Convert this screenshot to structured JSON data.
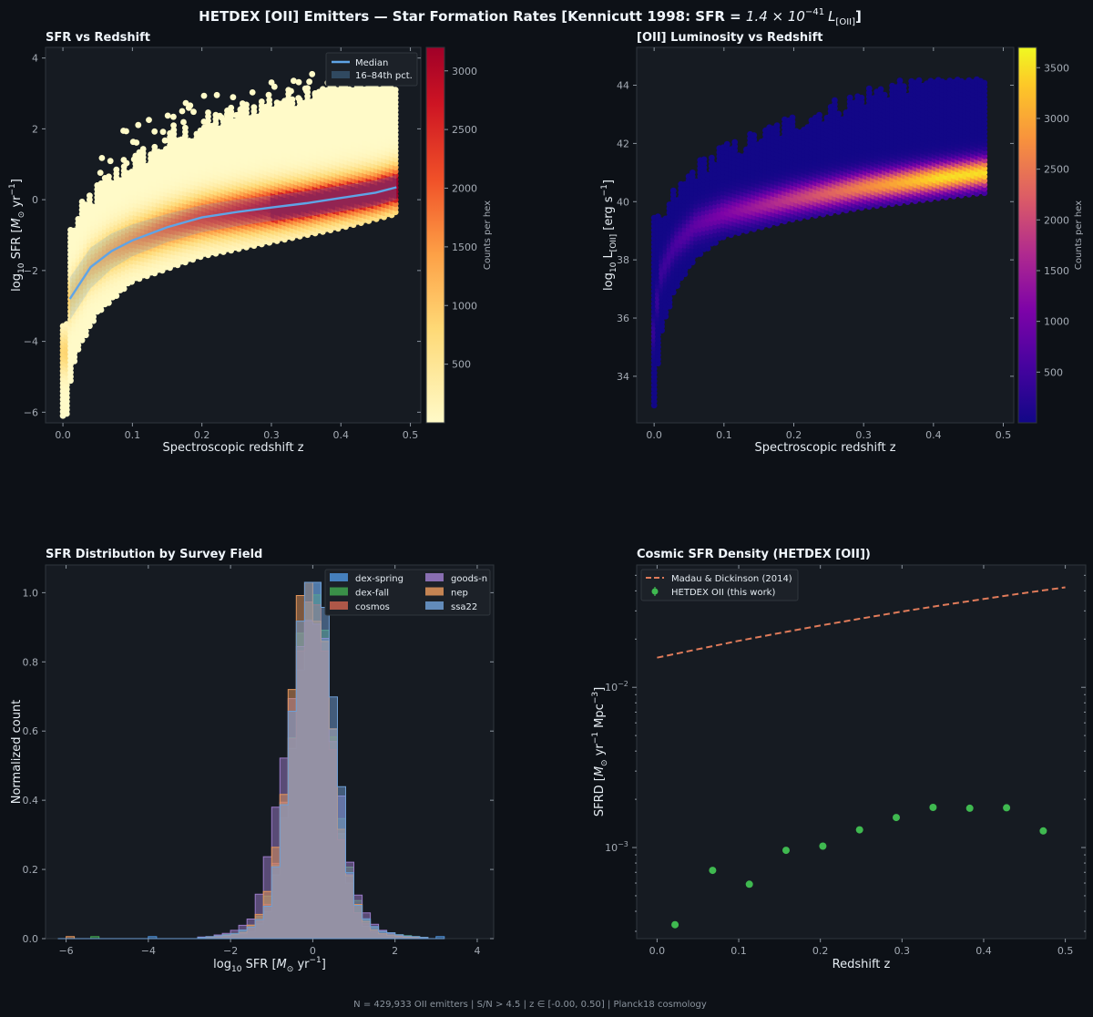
{
  "figure": {
    "title_prefix": "HETDEX [OII] Emitters — Star Formation Rates  [Kennicutt 1998: SFR = ",
    "title_formula_coef": "1.4 × 10",
    "title_formula_exp": "−41",
    "title_formula_L": "L",
    "title_formula_sub": "[OII]",
    "title_suffix": "]",
    "footer": "N = 429,933 OII emitters   |   S/N > 4.5   |   z ∈ [-0.00, 0.50]   |   Planck18 cosmology",
    "colors": {
      "background": "#0d1117",
      "panel": "#161b22",
      "median": "#5fa4e6",
      "madau": "#e07b5a",
      "hetdex": "#3fb950"
    }
  },
  "chart_data": [
    {
      "type": "heatmap",
      "title": "SFR vs Redshift",
      "xlabel": "Spectroscopic redshift  z",
      "ylabel_parts": [
        "log",
        "10",
        " SFR  [",
        "M",
        "⊙",
        " yr",
        "−1",
        "]"
      ],
      "xlim": [
        -0.025,
        0.515
      ],
      "ylim": [
        -6.3,
        4.3
      ],
      "xticks": [
        "0.0",
        "0.1",
        "0.2",
        "0.3",
        "0.4",
        "0.5"
      ],
      "yticks": [
        "−6",
        "−4",
        "−2",
        "0",
        "2",
        "4"
      ],
      "colorbar": {
        "label": "Counts per hex",
        "range": [
          0,
          3200
        ],
        "ticks": [
          "500",
          "1000",
          "1500",
          "2000",
          "2500",
          "3000"
        ],
        "colormap": "YlOrRd"
      },
      "legend": {
        "position": "top-right",
        "entries": [
          "Median",
          "16–84th pct."
        ]
      },
      "median": {
        "x": [
          0.01,
          0.04,
          0.07,
          0.1,
          0.15,
          0.2,
          0.25,
          0.3,
          0.35,
          0.4,
          0.45,
          0.48
        ],
        "y": [
          -2.8,
          -1.9,
          -1.45,
          -1.15,
          -0.78,
          -0.5,
          -0.35,
          -0.22,
          -0.1,
          0.05,
          0.2,
          0.35
        ]
      },
      "band_16_84": {
        "x": [
          0.01,
          0.04,
          0.07,
          0.1,
          0.15,
          0.2,
          0.25,
          0.3,
          0.35,
          0.4,
          0.45,
          0.48
        ],
        "low": [
          -3.4,
          -2.5,
          -1.95,
          -1.6,
          -1.2,
          -0.92,
          -0.75,
          -0.6,
          -0.48,
          -0.33,
          -0.17,
          0.0
        ],
        "high": [
          -2.2,
          -1.35,
          -0.95,
          -0.7,
          -0.4,
          -0.15,
          0.0,
          0.12,
          0.24,
          0.4,
          0.55,
          0.7
        ]
      }
    },
    {
      "type": "heatmap",
      "title": "[OII] Luminosity vs Redshift",
      "xlabel": "Spectroscopic redshift  z",
      "ylabel_parts": [
        "log",
        "10",
        " L",
        "[OII]",
        "  [erg s",
        "−1",
        "]"
      ],
      "xlim": [
        -0.025,
        0.515
      ],
      "ylim": [
        32.4,
        45.3
      ],
      "xticks": [
        "0.0",
        "0.1",
        "0.2",
        "0.3",
        "0.4",
        "0.5"
      ],
      "yticks": [
        "34",
        "36",
        "38",
        "40",
        "42",
        "44"
      ],
      "colorbar": {
        "label": "Counts per hex",
        "range": [
          0,
          3700
        ],
        "ticks": [
          "500",
          "1000",
          "1500",
          "2000",
          "2500",
          "3000",
          "3500"
        ],
        "colormap": "plasma"
      }
    },
    {
      "type": "bar",
      "title": "SFR Distribution by Survey Field",
      "xlabel_parts": [
        "log",
        "10",
        " SFR  [",
        "M",
        "⊙",
        " yr",
        "−1",
        "]"
      ],
      "ylabel": "Normalized count",
      "xlim": [
        -6.5,
        4.4
      ],
      "ylim": [
        0,
        1.08
      ],
      "xticks": [
        "−6",
        "−4",
        "−2",
        "0",
        "2",
        "4"
      ],
      "yticks": [
        "0.0",
        "0.2",
        "0.4",
        "0.6",
        "0.8",
        "1.0"
      ],
      "legend": {
        "position": "top-right"
      },
      "series": [
        {
          "name": "dex-spring",
          "color": "#4c8fd6",
          "sigma": 0.45,
          "peak": 1.0,
          "shift": 0.0
        },
        {
          "name": "dex-fall",
          "color": "#3fa34d",
          "sigma": 0.47,
          "peak": 0.96,
          "shift": -0.02
        },
        {
          "name": "cosmos",
          "color": "#c8604e",
          "sigma": 0.48,
          "peak": 0.94,
          "shift": -0.04
        },
        {
          "name": "goods-n",
          "color": "#9b7bc9",
          "sigma": 0.55,
          "peak": 0.92,
          "shift": -0.08
        },
        {
          "name": "nep",
          "color": "#e3955a",
          "sigma": 0.5,
          "peak": 0.97,
          "shift": -0.05
        },
        {
          "name": "ssa22",
          "color": "#6f9ed4",
          "sigma": 0.46,
          "peak": 1.02,
          "shift": 0.02
        }
      ]
    },
    {
      "type": "scatter",
      "title": "Cosmic SFR Density (HETDEX [OII])",
      "xlabel": "Redshift  z",
      "ylabel_parts": [
        "SFRD  [",
        "M",
        "⊙",
        " yr",
        "−1",
        " Mpc",
        "−3",
        "]"
      ],
      "xlim": [
        -0.025,
        0.525
      ],
      "ylim": [
        0.00027,
        0.058
      ],
      "yscale": "log",
      "xticks": [
        "0.0",
        "0.1",
        "0.2",
        "0.3",
        "0.4",
        "0.5"
      ],
      "yticks": [
        {
          "base": "10",
          "exp": "−3",
          "value": 0.001
        },
        {
          "base": "10",
          "exp": "−2",
          "value": 0.01
        }
      ],
      "legend": {
        "position": "top-left",
        "entries": [
          "Madau & Dickinson (2014)",
          "HETDEX OII (this work)"
        ]
      },
      "madau": {
        "x": [
          0.0,
          0.05,
          0.1,
          0.15,
          0.2,
          0.25,
          0.3,
          0.35,
          0.4,
          0.45,
          0.5
        ],
        "y": [
          0.0153,
          0.0173,
          0.0195,
          0.0218,
          0.0243,
          0.0269,
          0.0297,
          0.0326,
          0.0356,
          0.0388,
          0.0421
        ]
      },
      "hetdex": {
        "x": [
          0.022,
          0.068,
          0.113,
          0.158,
          0.203,
          0.248,
          0.293,
          0.338,
          0.383,
          0.428,
          0.473
        ],
        "y": [
          0.00033,
          0.00072,
          0.00059,
          0.00096,
          0.00102,
          0.00129,
          0.00154,
          0.00178,
          0.00176,
          0.00177,
          0.00127
        ]
      }
    }
  ]
}
